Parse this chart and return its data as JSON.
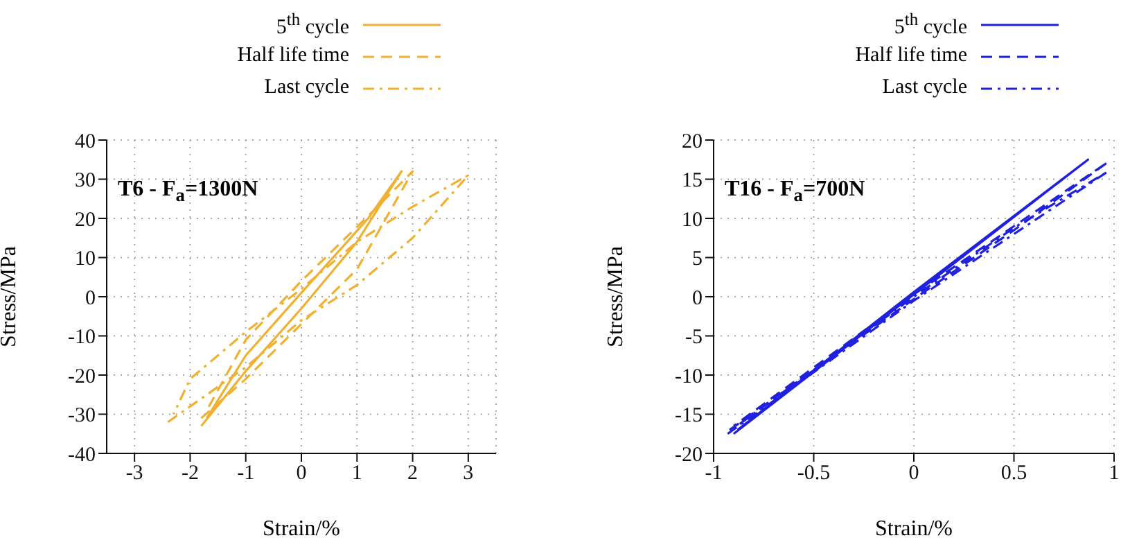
{
  "chart_data": [
    {
      "type": "line",
      "xlabel": "Strain/%",
      "ylabel": "Stress/MPa",
      "annotations": [
        "T6 - F$_{a}$=1300N"
      ],
      "xlim": [
        -3.5,
        3.5
      ],
      "xticks": [
        -3,
        -2,
        -1,
        0,
        1,
        2,
        3
      ],
      "ylim": [
        -40,
        40
      ],
      "yticks": [
        -40,
        -30,
        -20,
        -10,
        0,
        10,
        20,
        30,
        40
      ],
      "grid": true,
      "legend": "top right",
      "marker": "none",
      "series": [
        {
          "name": "5$^{th}$ cycle",
          "color": "#f0b030",
          "line_style": "solid",
          "x": [
            -1.8,
            -1,
            0,
            1,
            1.8,
            1.2,
            0,
            -1,
            -1.7
          ],
          "values": [
            -33,
            -19,
            -3,
            14,
            32,
            20,
            1,
            -15,
            -31
          ]
        },
        {
          "name": "Half life time",
          "color": "#f0b030",
          "line_style": "dashed",
          "x": [
            -1.8,
            -1,
            0,
            1,
            2,
            1.3,
            0,
            -1,
            -1.7
          ],
          "values": [
            -31,
            -21,
            -7,
            7,
            32,
            22,
            4,
            -11,
            -29
          ]
        },
        {
          "name": "Last cycle",
          "color": "#f0b030",
          "line_style": "dashdot",
          "x": [
            -2.4,
            -1,
            0,
            1,
            2,
            3,
            2,
            1,
            0,
            -1,
            -2,
            -2.3
          ],
          "values": [
            -32,
            -18,
            -6,
            3,
            15,
            31,
            23,
            14,
            2,
            -9,
            -21,
            -30
          ]
        }
      ]
    },
    {
      "type": "line",
      "xlabel": "Strain/%",
      "ylabel": "Stress/MPa",
      "annotations": [
        "T16 - F$_{a}$=700N"
      ],
      "xlim": [
        -1,
        1
      ],
      "xticks": [
        -1,
        -0.5,
        0,
        0.5,
        1
      ],
      "ylim": [
        -20,
        20
      ],
      "yticks": [
        -20,
        -15,
        -10,
        -5,
        0,
        5,
        10,
        15,
        20
      ],
      "grid": true,
      "legend": "top right",
      "marker": "none",
      "series": [
        {
          "name": "5$^{th}$ cycle",
          "color": "#2020e0",
          "line_style": "solid",
          "x": [
            -0.9,
            0,
            0.87,
            0,
            -0.88
          ],
          "values": [
            -17.5,
            0.3,
            17.5,
            0.6,
            -17
          ]
        },
        {
          "name": "Half life time",
          "color": "#2020e0",
          "line_style": "dashed",
          "x": [
            -0.92,
            0,
            0.5,
            0.97,
            0.5,
            0,
            -0.9
          ],
          "values": [
            -17,
            -0.3,
            8.5,
            17.2,
            9,
            0.3,
            -16.5
          ]
        },
        {
          "name": "Last cycle",
          "color": "#2020e0",
          "line_style": "dashdot",
          "x": [
            -0.93,
            0,
            0.5,
            0.97,
            0.5,
            0,
            -0.91
          ],
          "values": [
            -17.5,
            -0.5,
            8,
            16,
            8.8,
            0,
            -17
          ]
        }
      ]
    }
  ]
}
